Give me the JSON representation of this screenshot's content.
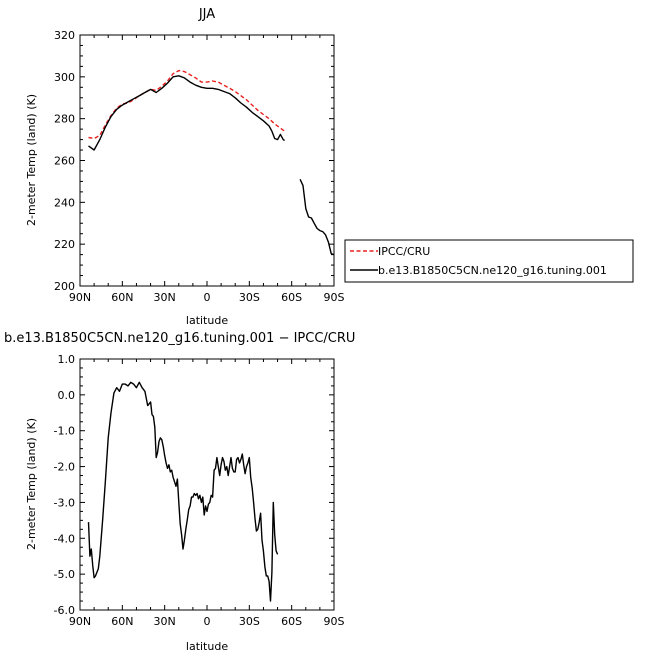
{
  "chart_data": [
    {
      "type": "line",
      "title": "JJA",
      "xlabel": "latitude",
      "ylabel": "2-meter Temp (land) (K)",
      "xlim": [
        90,
        -90
      ],
      "ylim": [
        200,
        320
      ],
      "xticks": [
        90,
        60,
        30,
        0,
        -30,
        -60,
        -90
      ],
      "xtick_labels": [
        "90N",
        "60N",
        "30N",
        "0",
        "30S",
        "60S",
        "90S"
      ],
      "yticks": [
        200,
        220,
        240,
        260,
        280,
        300,
        320
      ],
      "ytick_labels": [
        "200",
        "220",
        "240",
        "260",
        "280",
        "300",
        "320"
      ],
      "legend_position": "right, outside plot",
      "series": [
        {
          "name": "IPCC/CRU",
          "color": "#e8211f",
          "dash": "dashed",
          "segments": [
            [
              [
                84,
                271
              ],
              [
                80,
                270.5
              ],
              [
                76,
                272
              ],
              [
                72,
                277
              ],
              [
                68,
                281.5
              ],
              [
                64,
                285
              ],
              [
                60,
                287
              ],
              [
                56,
                287.5
              ],
              [
                52,
                289
              ],
              [
                48,
                291
              ],
              [
                44,
                292.5
              ],
              [
                40,
                294
              ],
              [
                36,
                293.5
              ],
              [
                32,
                295.5
              ],
              [
                28,
                298
              ],
              [
                24,
                301.5
              ],
              [
                20,
                303
              ],
              [
                16,
                302.5
              ],
              [
                12,
                301
              ],
              [
                8,
                299.5
              ],
              [
                4,
                297.5
              ],
              [
                0,
                297.5
              ],
              [
                -4,
                298
              ],
              [
                -8,
                297.5
              ],
              [
                -12,
                296
              ],
              [
                -16,
                294.5
              ],
              [
                -20,
                293
              ],
              [
                -24,
                291
              ],
              [
                -28,
                289
              ],
              [
                -32,
                286.5
              ],
              [
                -36,
                284
              ],
              [
                -40,
                282
              ],
              [
                -44,
                280
              ],
              [
                -48,
                277.5
              ],
              [
                -52,
                275.5
              ],
              [
                -55,
                274
              ]
            ]
          ]
        },
        {
          "name": "b.e13.B1850C5CN.ne120_g16.tuning.001",
          "color": "#000000",
          "dash": "solid",
          "segments": [
            [
              [
                84,
                267
              ],
              [
                80,
                265
              ],
              [
                76,
                270
              ],
              [
                72,
                276
              ],
              [
                68,
                281
              ],
              [
                64,
                284.5
              ],
              [
                60,
                286.5
              ],
              [
                56,
                288
              ],
              [
                52,
                289.5
              ],
              [
                48,
                291
              ],
              [
                44,
                292.5
              ],
              [
                40,
                294
              ],
              [
                36,
                292.5
              ],
              [
                32,
                294.5
              ],
              [
                28,
                297
              ],
              [
                24,
                300
              ],
              [
                20,
                300.5
              ],
              [
                16,
                299.5
              ],
              [
                12,
                297.5
              ],
              [
                8,
                296
              ],
              [
                4,
                295
              ],
              [
                0,
                294.5
              ],
              [
                -4,
                294.5
              ],
              [
                -8,
                294
              ],
              [
                -12,
                293
              ],
              [
                -16,
                292
              ],
              [
                -20,
                290
              ],
              [
                -24,
                287.5
              ],
              [
                -28,
                285.5
              ],
              [
                -32,
                283
              ],
              [
                -36,
                281
              ],
              [
                -40,
                279
              ],
              [
                -44,
                276.5
              ],
              [
                -46,
                274
              ],
              [
                -48,
                270.5
              ],
              [
                -50,
                270
              ],
              [
                -52,
                272.5
              ],
              [
                -54,
                270
              ],
              [
                -55,
                269.5
              ]
            ],
            [
              [
                -66,
                251
              ],
              [
                -68,
                248
              ],
              [
                -70,
                237
              ],
              [
                -72,
                233
              ],
              [
                -74,
                232.5
              ],
              [
                -76,
                230
              ],
              [
                -78,
                227.5
              ],
              [
                -80,
                226.5
              ],
              [
                -82,
                226
              ],
              [
                -84,
                224.5
              ],
              [
                -86,
                221
              ],
              [
                -88,
                215.5
              ],
              [
                -90,
                215
              ]
            ]
          ]
        }
      ]
    },
    {
      "type": "line",
      "title": "b.e13.B1850C5CN.ne120_g16.tuning.001 − IPCC/CRU",
      "xlabel": "latitude",
      "ylabel": "2-meter Temp (land) (K)",
      "xlim": [
        90,
        -90
      ],
      "ylim": [
        -6,
        1
      ],
      "xticks": [
        90,
        60,
        30,
        0,
        -30,
        -60,
        -90
      ],
      "xtick_labels": [
        "90N",
        "60N",
        "30N",
        "0",
        "30S",
        "60S",
        "90S"
      ],
      "yticks": [
        -6,
        -5,
        -4,
        -3,
        -2,
        -1,
        0,
        1
      ],
      "ytick_labels": [
        "-6.0",
        "-5.0",
        "-4.0",
        "-3.0",
        "-2.0",
        "-1.0",
        "0.0",
        "1.0"
      ],
      "series": [
        {
          "color": "#000000",
          "dash": "solid",
          "segments": [
            [
              [
                84,
                -3.55
              ],
              [
                83,
                -4.5
              ],
              [
                82,
                -4.3
              ],
              [
                81,
                -4.75
              ],
              [
                80,
                -5.1
              ],
              [
                79,
                -5.05
              ],
              [
                78,
                -4.95
              ],
              [
                77,
                -4.85
              ],
              [
                76,
                -4.5
              ],
              [
                74,
                -3.5
              ],
              [
                72,
                -2.4
              ],
              [
                70,
                -1.2
              ],
              [
                68,
                -0.5
              ],
              [
                66,
                0.05
              ],
              [
                64,
                0.2
              ],
              [
                62,
                0.1
              ],
              [
                60,
                0.3
              ],
              [
                58,
                0.3
              ],
              [
                56,
                0.25
              ],
              [
                54,
                0.35
              ],
              [
                52,
                0.3
              ],
              [
                50,
                0.2
              ],
              [
                48,
                0.35
              ],
              [
                46,
                0.2
              ],
              [
                44,
                0.1
              ],
              [
                42,
                -0.3
              ],
              [
                40,
                -0.2
              ],
              [
                39,
                -0.55
              ],
              [
                38,
                -0.6
              ],
              [
                37,
                -0.9
              ],
              [
                36,
                -1.75
              ],
              [
                35,
                -1.6
              ],
              [
                34,
                -1.3
              ],
              [
                33,
                -1.2
              ],
              [
                32,
                -1.25
              ],
              [
                31,
                -1.45
              ],
              [
                30,
                -1.7
              ],
              [
                29,
                -1.9
              ],
              [
                28,
                -2.05
              ],
              [
                27,
                -1.95
              ],
              [
                26,
                -2.15
              ],
              [
                25,
                -2.1
              ],
              [
                24,
                -2.3
              ],
              [
                22,
                -2.55
              ],
              [
                21,
                -2.35
              ],
              [
                20,
                -3.0
              ],
              [
                19,
                -3.6
              ],
              [
                18,
                -3.9
              ],
              [
                17,
                -4.3
              ],
              [
                16,
                -4.05
              ],
              [
                15,
                -3.75
              ],
              [
                14,
                -3.5
              ],
              [
                13,
                -3.2
              ],
              [
                12,
                -3.1
              ],
              [
                11,
                -2.85
              ],
              [
                10,
                -2.85
              ],
              [
                9,
                -2.75
              ],
              [
                8,
                -2.8
              ],
              [
                7,
                -2.75
              ],
              [
                6,
                -2.9
              ],
              [
                5,
                -2.8
              ],
              [
                4,
                -3.0
              ],
              [
                3,
                -2.85
              ],
              [
                2,
                -3.35
              ],
              [
                1,
                -3.1
              ],
              [
                0,
                -3.25
              ],
              [
                -1,
                -3.05
              ],
              [
                -2,
                -3.0
              ],
              [
                -3,
                -2.8
              ],
              [
                -4,
                -2.85
              ],
              [
                -5,
                -2.1
              ],
              [
                -6,
                -2.05
              ],
              [
                -7,
                -1.75
              ],
              [
                -8,
                -2.0
              ],
              [
                -9,
                -2.25
              ],
              [
                -10,
                -1.95
              ],
              [
                -11,
                -1.75
              ],
              [
                -12,
                -1.85
              ],
              [
                -13,
                -2.1
              ],
              [
                -14,
                -2.0
              ],
              [
                -15,
                -2.25
              ],
              [
                -16,
                -2.0
              ],
              [
                -17,
                -1.75
              ],
              [
                -18,
                -2.05
              ],
              [
                -19,
                -2.15
              ],
              [
                -20,
                -2.15
              ],
              [
                -21,
                -1.8
              ],
              [
                -22,
                -1.75
              ],
              [
                -23,
                -1.9
              ],
              [
                -24,
                -1.8
              ],
              [
                -25,
                -1.65
              ],
              [
                -26,
                -1.95
              ],
              [
                -27,
                -2.2
              ],
              [
                -28,
                -2.0
              ],
              [
                -29,
                -1.9
              ],
              [
                -30,
                -1.75
              ],
              [
                -31,
                -2.3
              ],
              [
                -32,
                -2.6
              ],
              [
                -33,
                -3.0
              ],
              [
                -34,
                -3.45
              ],
              [
                -35,
                -3.8
              ],
              [
                -36,
                -3.75
              ],
              [
                -37,
                -3.55
              ],
              [
                -38,
                -3.3
              ],
              [
                -39,
                -4.05
              ],
              [
                -40,
                -4.35
              ],
              [
                -41,
                -4.8
              ],
              [
                -42,
                -5.05
              ],
              [
                -43,
                -5.05
              ],
              [
                -44,
                -5.2
              ],
              [
                -45,
                -5.75
              ],
              [
                -46,
                -4.95
              ],
              [
                -47,
                -3.0
              ],
              [
                -48,
                -3.9
              ],
              [
                -49,
                -4.35
              ],
              [
                -50,
                -4.45
              ]
            ]
          ]
        }
      ]
    }
  ]
}
